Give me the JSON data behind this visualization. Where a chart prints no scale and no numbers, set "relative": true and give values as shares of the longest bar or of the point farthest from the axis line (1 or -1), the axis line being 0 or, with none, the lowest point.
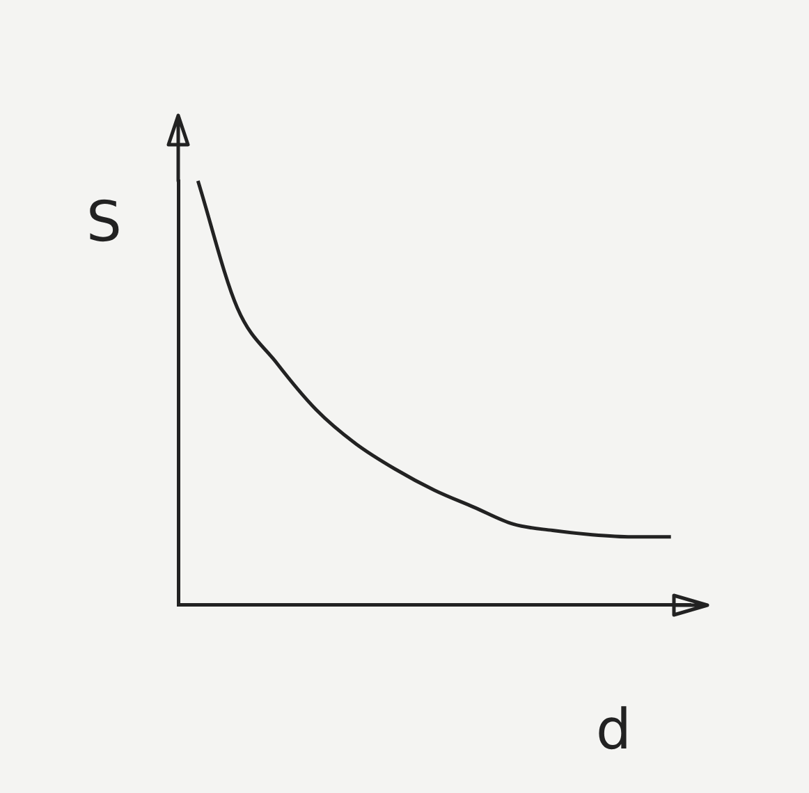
{
  "chart_data": {
    "type": "line",
    "relative": true,
    "xlabel": "d",
    "ylabel": "S",
    "categories": [
      null,
      null,
      null,
      null,
      null,
      null,
      null,
      null,
      null,
      null,
      null,
      null,
      null
    ],
    "series": [
      {
        "color": "#222222",
        "values": [
          1.0,
          0.7,
          0.57,
          0.46,
          0.38,
          0.32,
          0.27,
          0.23,
          0.19,
          0.175,
          0.165,
          0.16,
          0.16
        ]
      }
    ],
    "grid": false,
    "legend": false,
    "marker": "none",
    "line_style": "solid"
  }
}
